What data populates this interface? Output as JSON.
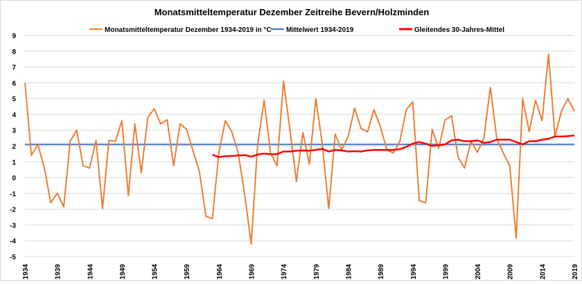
{
  "chart_data": {
    "type": "line",
    "title": "Monatsmitteltemperatur  Dezember Zeitreihe Bevern/Holzminden",
    "xlabel": "",
    "ylabel": "",
    "xlim": [
      1934,
      2019
    ],
    "ylim": [
      -5,
      9
    ],
    "grid": true,
    "legend_placement": "top",
    "x_ticks": [
      "1934",
      "1939",
      "1944",
      "1949",
      "1954",
      "1959",
      "1964",
      "1969",
      "1974",
      "1979",
      "1984",
      "1989",
      "1994",
      "1999",
      "2004",
      "2009",
      "2014",
      "2019"
    ],
    "y_ticks": [
      "9",
      "8",
      "7",
      "6",
      "5",
      "4",
      "3",
      "2",
      "1",
      "0",
      "-1",
      "-2",
      "-3",
      "-4",
      "-5"
    ],
    "series": [
      {
        "name": "Monatsmitteltemperatur Dezember 1934-2019 in °C",
        "color": "#ed7d31",
        "x_start": 1934,
        "values": [
          6.0,
          1.4,
          2.1,
          0.6,
          -1.6,
          -1.0,
          -1.85,
          2.3,
          3.0,
          0.75,
          0.6,
          2.35,
          -1.95,
          2.35,
          2.3,
          3.6,
          -1.15,
          3.4,
          0.3,
          3.8,
          4.35,
          3.4,
          3.65,
          0.75,
          3.4,
          3.05,
          1.7,
          0.35,
          -2.45,
          -2.6,
          1.6,
          3.6,
          2.9,
          1.55,
          -1.1,
          -4.2,
          2.1,
          4.9,
          1.55,
          0.75,
          6.1,
          3.0,
          -0.25,
          2.85,
          0.85,
          5.0,
          2.1,
          -1.95,
          2.75,
          1.75,
          2.6,
          4.4,
          3.1,
          2.9,
          4.3,
          3.2,
          1.75,
          1.55,
          2.3,
          4.3,
          4.8,
          -1.45,
          -1.6,
          3.05,
          1.85,
          3.65,
          3.9,
          1.3,
          0.6,
          2.3,
          1.6,
          2.5,
          5.7,
          2.45,
          1.55,
          0.75,
          -3.85,
          5.0,
          2.9,
          4.9,
          3.6,
          7.8,
          2.6,
          4.2,
          5.0,
          4.2
        ]
      },
      {
        "name": "Mittelwert 1934-2019",
        "color": "#4472c4",
        "x_start": 1934,
        "constant": 2.1
      },
      {
        "name": "Gleitendes 30-Jahres-Mittel",
        "color": "#ff0000",
        "x_start": 1963,
        "values": [
          1.45,
          1.3,
          1.35,
          1.37,
          1.4,
          1.42,
          1.33,
          1.45,
          1.52,
          1.48,
          1.48,
          1.65,
          1.65,
          1.7,
          1.72,
          1.7,
          1.75,
          1.82,
          1.65,
          1.75,
          1.72,
          1.65,
          1.67,
          1.65,
          1.72,
          1.75,
          1.75,
          1.75,
          1.75,
          1.8,
          1.95,
          2.15,
          2.25,
          2.15,
          2.0,
          2.05,
          2.1,
          2.35,
          2.4,
          2.3,
          2.3,
          2.35,
          2.2,
          2.25,
          2.4,
          2.4,
          2.4,
          2.25,
          2.1,
          2.3,
          2.3,
          2.4,
          2.45,
          2.6,
          2.6,
          2.62,
          2.67
        ]
      }
    ]
  }
}
